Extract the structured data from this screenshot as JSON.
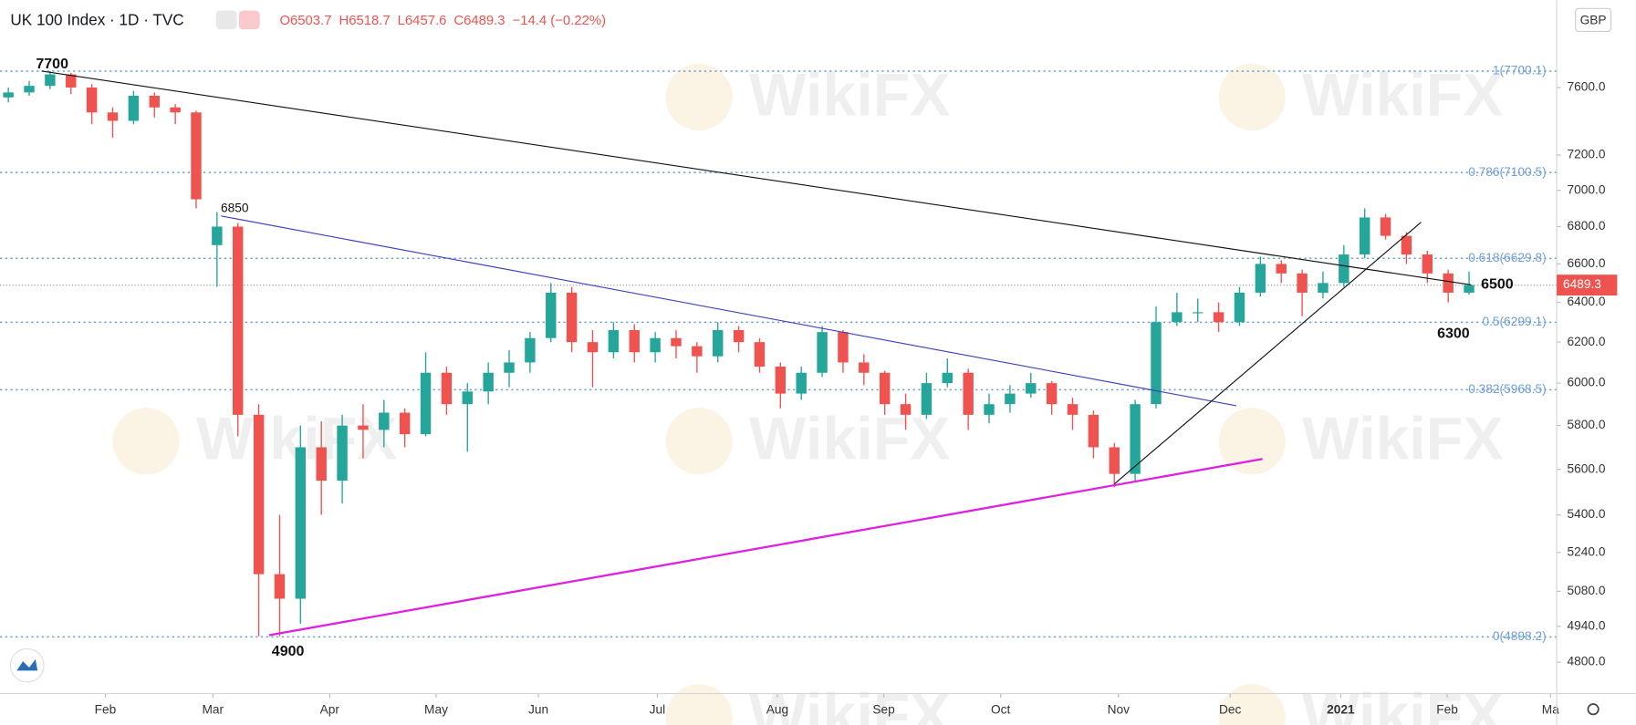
{
  "chart_data": {
    "type": "candlestick",
    "log_scale": true,
    "title": "UK 100 Index · 1D · TVC",
    "header_values": [
      "O6503.7",
      "H6518.7",
      "L6457.6",
      "C6489.3",
      "−14.4 (−0.22%)"
    ],
    "currency": "GBP",
    "watermark": "WikiFX",
    "up_color": "#26a69a",
    "down_color": "#ef5350",
    "ylim": [
      4681,
      8150
    ],
    "yticks": [
      {
        "value": 4800,
        "label": "4800.0"
      },
      {
        "value": 4940,
        "label": "4940.0"
      },
      {
        "value": 5080,
        "label": "5080.0"
      },
      {
        "value": 5240,
        "label": "5240.0"
      },
      {
        "value": 5400,
        "label": "5400.0"
      },
      {
        "value": 5600,
        "label": "5600.0"
      },
      {
        "value": 5800,
        "label": "5800.0"
      },
      {
        "value": 6000,
        "label": "6000.0"
      },
      {
        "value": 6200,
        "label": "6200.0"
      },
      {
        "value": 6400,
        "label": "6400.0"
      },
      {
        "value": 6600,
        "label": "6600.0"
      },
      {
        "value": 6800,
        "label": "6800.0"
      },
      {
        "value": 7000,
        "label": "7000.0"
      },
      {
        "value": 7200,
        "label": "7200.0"
      },
      {
        "value": 7600,
        "label": "7600.0"
      }
    ],
    "xlim": [
      -0.4,
      74.2
    ],
    "xticks": [
      {
        "value": 4.65,
        "label": "Feb"
      },
      {
        "value": 9.8,
        "label": "Mar"
      },
      {
        "value": 15.4,
        "label": "Apr"
      },
      {
        "value": 20.5,
        "label": "May"
      },
      {
        "value": 25.4,
        "label": "Jun"
      },
      {
        "value": 31.1,
        "label": "Jul"
      },
      {
        "value": 36.85,
        "label": "Aug"
      },
      {
        "value": 41.95,
        "label": "Sep"
      },
      {
        "value": 47.55,
        "label": "Oct"
      },
      {
        "value": 53.2,
        "label": "Nov"
      },
      {
        "value": 58.55,
        "label": "Dec"
      },
      {
        "value": 63.85,
        "label": "2021"
      },
      {
        "value": 68.95,
        "label": "Feb"
      },
      {
        "value": 73.9,
        "label": "Ma"
      }
    ],
    "fib_levels": [
      {
        "value": 7700.1,
        "label": "1(7700.1)"
      },
      {
        "value": 7100.5,
        "label": "0.786(7100.5)"
      },
      {
        "value": 6629.8,
        "label": "0.618(6629.8)"
      },
      {
        "value": 6299.1,
        "label": "0.5(6299.1)"
      },
      {
        "value": 5968.5,
        "label": "0.382(5968.5)"
      },
      {
        "value": 4898.2,
        "label": "0(4898.2)"
      }
    ],
    "last_price": 6489.3,
    "annotations": [
      "7700",
      "6850",
      "4900",
      "6500",
      "6300"
    ],
    "candles": [
      [
        7540,
        7600,
        7510,
        7570
      ],
      [
        7570,
        7640,
        7550,
        7610
      ],
      [
        7610,
        7700,
        7590,
        7680
      ],
      [
        7680,
        7690,
        7560,
        7600
      ],
      [
        7600,
        7620,
        7380,
        7450
      ],
      [
        7450,
        7480,
        7300,
        7400
      ],
      [
        7400,
        7580,
        7380,
        7550
      ],
      [
        7550,
        7570,
        7420,
        7480
      ],
      [
        7480,
        7500,
        7380,
        7450
      ],
      [
        7450,
        7460,
        6900,
        6950
      ],
      [
        6700,
        6880,
        6480,
        6800
      ],
      [
        6800,
        6820,
        5750,
        5850
      ],
      [
        5850,
        5900,
        4900,
        5150
      ],
      [
        5150,
        5400,
        4900,
        5050
      ],
      [
        5050,
        5800,
        4950,
        5700
      ],
      [
        5700,
        5820,
        5400,
        5550
      ],
      [
        5550,
        5850,
        5450,
        5800
      ],
      [
        5800,
        5900,
        5650,
        5780
      ],
      [
        5780,
        5920,
        5700,
        5860
      ],
      [
        5860,
        5880,
        5700,
        5760
      ],
      [
        5760,
        6150,
        5750,
        6050
      ],
      [
        6050,
        6080,
        5850,
        5900
      ],
      [
        5900,
        6000,
        5680,
        5960
      ],
      [
        5960,
        6100,
        5900,
        6050
      ],
      [
        6050,
        6160,
        5980,
        6100
      ],
      [
        6100,
        6250,
        6050,
        6220
      ],
      [
        6220,
        6500,
        6200,
        6450
      ],
      [
        6450,
        6480,
        6150,
        6200
      ],
      [
        6200,
        6260,
        5980,
        6150
      ],
      [
        6150,
        6300,
        6120,
        6260
      ],
      [
        6260,
        6290,
        6100,
        6150
      ],
      [
        6150,
        6250,
        6100,
        6220
      ],
      [
        6220,
        6260,
        6120,
        6180
      ],
      [
        6180,
        6200,
        6050,
        6130
      ],
      [
        6130,
        6300,
        6100,
        6260
      ],
      [
        6260,
        6280,
        6150,
        6200
      ],
      [
        6200,
        6220,
        6050,
        6080
      ],
      [
        6080,
        6100,
        5880,
        5950
      ],
      [
        5950,
        6080,
        5920,
        6050
      ],
      [
        6050,
        6280,
        6030,
        6250
      ],
      [
        6250,
        6260,
        6050,
        6100
      ],
      [
        6100,
        6140,
        5990,
        6050
      ],
      [
        6050,
        6060,
        5850,
        5900
      ],
      [
        5900,
        5950,
        5780,
        5850
      ],
      [
        5850,
        6050,
        5830,
        6000
      ],
      [
        6000,
        6120,
        5980,
        6050
      ],
      [
        6050,
        6070,
        5780,
        5850
      ],
      [
        5850,
        5950,
        5810,
        5900
      ],
      [
        5900,
        5990,
        5860,
        5950
      ],
      [
        5950,
        6050,
        5930,
        6000
      ],
      [
        6000,
        6010,
        5850,
        5900
      ],
      [
        5900,
        5930,
        5780,
        5850
      ],
      [
        5850,
        5870,
        5650,
        5700
      ],
      [
        5700,
        5720,
        5520,
        5580
      ],
      [
        5580,
        5920,
        5550,
        5900
      ],
      [
        5900,
        6380,
        5880,
        6300
      ],
      [
        6300,
        6450,
        6280,
        6350
      ],
      [
        6350,
        6420,
        6300,
        6350
      ],
      [
        6350,
        6400,
        6250,
        6300
      ],
      [
        6300,
        6480,
        6280,
        6450
      ],
      [
        6450,
        6640,
        6430,
        6600
      ],
      [
        6600,
        6620,
        6500,
        6550
      ],
      [
        6550,
        6570,
        6330,
        6450
      ],
      [
        6450,
        6560,
        6420,
        6500
      ],
      [
        6500,
        6700,
        6480,
        6650
      ],
      [
        6650,
        6900,
        6630,
        6850
      ],
      [
        6850,
        6870,
        6730,
        6750
      ],
      [
        6750,
        6770,
        6600,
        6650
      ],
      [
        6650,
        6670,
        6500,
        6550
      ],
      [
        6550,
        6570,
        6400,
        6450
      ],
      [
        6450,
        6560,
        6440,
        6489.3
      ]
    ]
  }
}
